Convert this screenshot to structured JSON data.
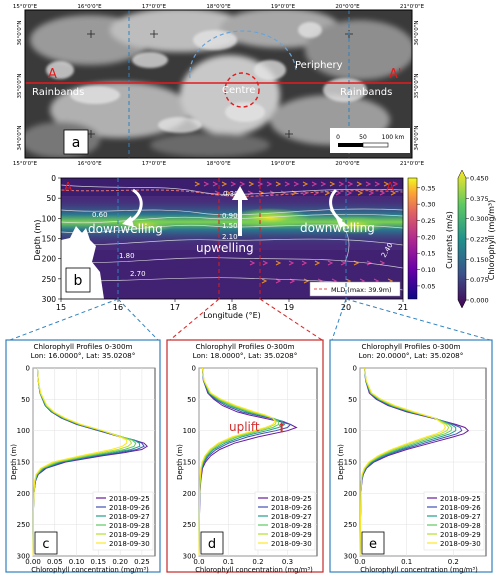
{
  "colors": {
    "section_line": "#e41a1c",
    "blue_dash": "#3182bd",
    "panel_c_border": "#3182bd",
    "panel_d_border": "#c62828",
    "panel_e_border": "#3182bd",
    "series": [
      "#6a1b9a",
      "#3f51b5",
      "#1f9e89",
      "#5ec962",
      "#b5de2b",
      "#fde725"
    ]
  },
  "satellite": {
    "lon_ticks": [
      "15°0'0\"E",
      "16°0'0\"E",
      "17°0'0\"E",
      "18°0'0\"E",
      "19°0'0\"E",
      "20°0'0\"E",
      "21°0'0\"E"
    ],
    "lat_ticks": [
      "36°0'0\"N",
      "35°0'0\"N",
      "34°0'0\"N"
    ],
    "label_a": "A",
    "label_a_prime": "A'",
    "periphery": "Periphery",
    "rainbands_left": "Rainbands",
    "centre": "Centre",
    "rainbands_right": "Rainbands",
    "scale_labels": [
      "0",
      "50",
      "100 km"
    ],
    "panel_letter": "a"
  },
  "section": {
    "label_a": "A",
    "label_a_prime": "A'",
    "ylabel": "Depth (m)",
    "xlabel": "Longitude (°E)",
    "x_ticks": [
      "15",
      "16",
      "17",
      "18",
      "19",
      "20",
      "21"
    ],
    "y_ticks": [
      "0",
      "50",
      "100",
      "150",
      "200",
      "250",
      "300"
    ],
    "contour_labels": [
      "0.30",
      "0.60",
      "0.90",
      "1.50",
      "2.10",
      "1.80",
      "2.70",
      "2.40"
    ],
    "downwelling_left": "downwelling",
    "upwelling": "upwelling",
    "downwelling_right": "downwelling",
    "legend": "MLD (max: 39.9m)",
    "panel_letter": "b",
    "currents_label": "Currents (m/s)",
    "currents_ticks": [
      "0.05",
      "0.10",
      "0.15",
      "0.20",
      "0.25",
      "0.30",
      "0.35"
    ],
    "chl_label": "Chlorophyll (mg/m³)",
    "chl_ticks": [
      "0.000",
      "0.075",
      "0.150",
      "0.225",
      "0.300",
      "0.375",
      "0.450"
    ]
  },
  "chart_data": [
    {
      "type": "line",
      "title": "Chlorophyll Profiles 0-300m",
      "subtitle": "Lon: 16.0000°, Lat: 35.0208°",
      "xlabel": "Chlorophyll concentration (mg/m³)",
      "ylabel": "Depth (m)",
      "xlim": [
        0,
        0.28
      ],
      "ylim": [
        300,
        0
      ],
      "x_ticks": [
        "0.00",
        "0.05",
        "0.10",
        "0.15",
        "0.20",
        "0.25"
      ],
      "y_ticks": [
        "0",
        "50",
        "100",
        "150",
        "200",
        "250",
        "300"
      ],
      "panel_letter": "c",
      "annotation": "",
      "depth": [
        0,
        20,
        40,
        60,
        70,
        80,
        90,
        100,
        110,
        115,
        120,
        125,
        130,
        135,
        140,
        150,
        160,
        170,
        180,
        200,
        230,
        260,
        300
      ],
      "series": [
        {
          "name": "2018-09-25",
          "values": [
            0.01,
            0.012,
            0.016,
            0.028,
            0.042,
            0.065,
            0.1,
            0.15,
            0.2,
            0.232,
            0.255,
            0.262,
            0.25,
            0.21,
            0.16,
            0.075,
            0.03,
            0.012,
            0.006,
            0.002,
            0.001,
            0.001,
            0.0
          ]
        },
        {
          "name": "2018-09-26",
          "values": [
            0.01,
            0.012,
            0.016,
            0.028,
            0.043,
            0.066,
            0.102,
            0.152,
            0.202,
            0.233,
            0.25,
            0.255,
            0.238,
            0.198,
            0.15,
            0.07,
            0.028,
            0.011,
            0.006,
            0.002,
            0.001,
            0.001,
            0.0
          ]
        },
        {
          "name": "2018-09-27",
          "values": [
            0.01,
            0.012,
            0.016,
            0.029,
            0.044,
            0.068,
            0.104,
            0.155,
            0.204,
            0.232,
            0.244,
            0.245,
            0.225,
            0.185,
            0.14,
            0.064,
            0.025,
            0.01,
            0.005,
            0.002,
            0.001,
            0.001,
            0.0
          ]
        },
        {
          "name": "2018-09-28",
          "values": [
            0.01,
            0.012,
            0.017,
            0.03,
            0.045,
            0.07,
            0.106,
            0.158,
            0.205,
            0.228,
            0.236,
            0.232,
            0.21,
            0.172,
            0.13,
            0.058,
            0.022,
            0.009,
            0.005,
            0.002,
            0.001,
            0.001,
            0.0
          ]
        },
        {
          "name": "2018-09-29",
          "values": [
            0.01,
            0.012,
            0.017,
            0.031,
            0.047,
            0.072,
            0.108,
            0.16,
            0.203,
            0.222,
            0.226,
            0.218,
            0.195,
            0.158,
            0.12,
            0.052,
            0.02,
            0.008,
            0.004,
            0.002,
            0.001,
            0.001,
            0.0
          ]
        },
        {
          "name": "2018-09-30",
          "values": [
            0.01,
            0.012,
            0.018,
            0.032,
            0.048,
            0.074,
            0.11,
            0.16,
            0.2,
            0.215,
            0.215,
            0.205,
            0.18,
            0.145,
            0.11,
            0.046,
            0.018,
            0.007,
            0.004,
            0.002,
            0.001,
            0.001,
            0.0
          ]
        }
      ]
    },
    {
      "type": "line",
      "title": "Chlorophyll Profiles 0-300m",
      "subtitle": "Lon: 18.0000°, Lat: 35.0208°",
      "xlabel": "Chlorophyll concentration (mg/m³)",
      "ylabel": "Depth (m)",
      "xlim": [
        0,
        0.4
      ],
      "ylim": [
        300,
        0
      ],
      "x_ticks": [
        "0.0",
        "0.1",
        "0.2",
        "0.3"
      ],
      "y_ticks": [
        "0",
        "50",
        "100",
        "150",
        "200",
        "250",
        "300"
      ],
      "panel_letter": "d",
      "annotation": "uplift",
      "depth": [
        0,
        20,
        40,
        50,
        60,
        70,
        75,
        80,
        85,
        90,
        95,
        100,
        105,
        110,
        120,
        130,
        140,
        150,
        160,
        180,
        200,
        250,
        300
      ],
      "series": [
        {
          "name": "2018-09-25",
          "values": [
            0.012,
            0.015,
            0.03,
            0.05,
            0.08,
            0.13,
            0.17,
            0.22,
            0.27,
            0.31,
            0.33,
            0.3,
            0.25,
            0.2,
            0.12,
            0.07,
            0.04,
            0.022,
            0.012,
            0.006,
            0.003,
            0.001,
            0.0
          ]
        },
        {
          "name": "2018-09-26",
          "values": [
            0.012,
            0.015,
            0.032,
            0.055,
            0.09,
            0.145,
            0.19,
            0.24,
            0.285,
            0.31,
            0.3,
            0.26,
            0.21,
            0.165,
            0.1,
            0.058,
            0.033,
            0.018,
            0.01,
            0.005,
            0.003,
            0.001,
            0.0
          ]
        },
        {
          "name": "2018-09-27",
          "values": [
            0.012,
            0.016,
            0.034,
            0.06,
            0.1,
            0.16,
            0.205,
            0.25,
            0.28,
            0.29,
            0.27,
            0.23,
            0.185,
            0.145,
            0.088,
            0.05,
            0.028,
            0.016,
            0.009,
            0.005,
            0.002,
            0.001,
            0.0
          ]
        },
        {
          "name": "2018-09-28",
          "values": [
            0.012,
            0.016,
            0.036,
            0.065,
            0.11,
            0.17,
            0.212,
            0.25,
            0.27,
            0.27,
            0.25,
            0.21,
            0.17,
            0.13,
            0.078,
            0.045,
            0.025,
            0.014,
            0.008,
            0.004,
            0.002,
            0.001,
            0.0
          ]
        },
        {
          "name": "2018-09-29",
          "values": [
            0.012,
            0.017,
            0.038,
            0.07,
            0.118,
            0.18,
            0.22,
            0.25,
            0.262,
            0.258,
            0.235,
            0.196,
            0.158,
            0.12,
            0.07,
            0.04,
            0.022,
            0.012,
            0.007,
            0.004,
            0.002,
            0.001,
            0.0
          ]
        },
        {
          "name": "2018-09-30",
          "values": [
            0.012,
            0.017,
            0.04,
            0.075,
            0.125,
            0.188,
            0.225,
            0.25,
            0.258,
            0.25,
            0.225,
            0.185,
            0.148,
            0.112,
            0.065,
            0.037,
            0.02,
            0.011,
            0.006,
            0.003,
            0.002,
            0.001,
            0.0
          ]
        }
      ]
    },
    {
      "type": "line",
      "title": "Chlorophyll Profiles 0-300m",
      "subtitle": "Lon: 20.0000°, Lat: 35.0208°",
      "xlabel": "Chlorophyll concentration (mg/m³)",
      "ylabel": "Depth (m)",
      "xlim": [
        0,
        0.27
      ],
      "ylim": [
        300,
        0
      ],
      "x_ticks": [
        "0.0",
        "0.1",
        "0.2"
      ],
      "y_ticks": [
        "0",
        "50",
        "100",
        "150",
        "200",
        "250",
        "300"
      ],
      "panel_letter": "e",
      "annotation": "",
      "depth": [
        0,
        20,
        40,
        50,
        60,
        70,
        80,
        90,
        95,
        100,
        105,
        110,
        120,
        130,
        140,
        150,
        160,
        170,
        180,
        200,
        240,
        300
      ],
      "series": [
        {
          "name": "2018-09-25",
          "values": [
            0.01,
            0.012,
            0.02,
            0.035,
            0.06,
            0.1,
            0.155,
            0.205,
            0.225,
            0.232,
            0.222,
            0.2,
            0.15,
            0.1,
            0.06,
            0.03,
            0.014,
            0.007,
            0.004,
            0.002,
            0.001,
            0.0
          ]
        },
        {
          "name": "2018-09-26",
          "values": [
            0.01,
            0.012,
            0.021,
            0.037,
            0.063,
            0.104,
            0.158,
            0.2,
            0.215,
            0.218,
            0.207,
            0.185,
            0.138,
            0.092,
            0.055,
            0.028,
            0.013,
            0.006,
            0.004,
            0.002,
            0.001,
            0.0
          ]
        },
        {
          "name": "2018-09-27",
          "values": [
            0.01,
            0.012,
            0.022,
            0.039,
            0.066,
            0.107,
            0.16,
            0.195,
            0.205,
            0.205,
            0.193,
            0.172,
            0.127,
            0.085,
            0.05,
            0.025,
            0.012,
            0.006,
            0.003,
            0.002,
            0.001,
            0.0
          ]
        },
        {
          "name": "2018-09-28",
          "values": [
            0.01,
            0.013,
            0.023,
            0.041,
            0.069,
            0.11,
            0.16,
            0.19,
            0.197,
            0.195,
            0.182,
            0.16,
            0.118,
            0.078,
            0.046,
            0.023,
            0.011,
            0.005,
            0.003,
            0.002,
            0.001,
            0.0
          ]
        },
        {
          "name": "2018-09-29",
          "values": [
            0.01,
            0.013,
            0.024,
            0.043,
            0.072,
            0.113,
            0.16,
            0.185,
            0.19,
            0.186,
            0.172,
            0.15,
            0.11,
            0.072,
            0.042,
            0.021,
            0.01,
            0.005,
            0.003,
            0.002,
            0.001,
            0.0
          ]
        },
        {
          "name": "2018-09-30",
          "values": [
            0.01,
            0.013,
            0.025,
            0.045,
            0.075,
            0.116,
            0.16,
            0.18,
            0.183,
            0.178,
            0.163,
            0.142,
            0.103,
            0.067,
            0.039,
            0.019,
            0.009,
            0.004,
            0.003,
            0.002,
            0.001,
            0.0
          ]
        }
      ]
    }
  ]
}
